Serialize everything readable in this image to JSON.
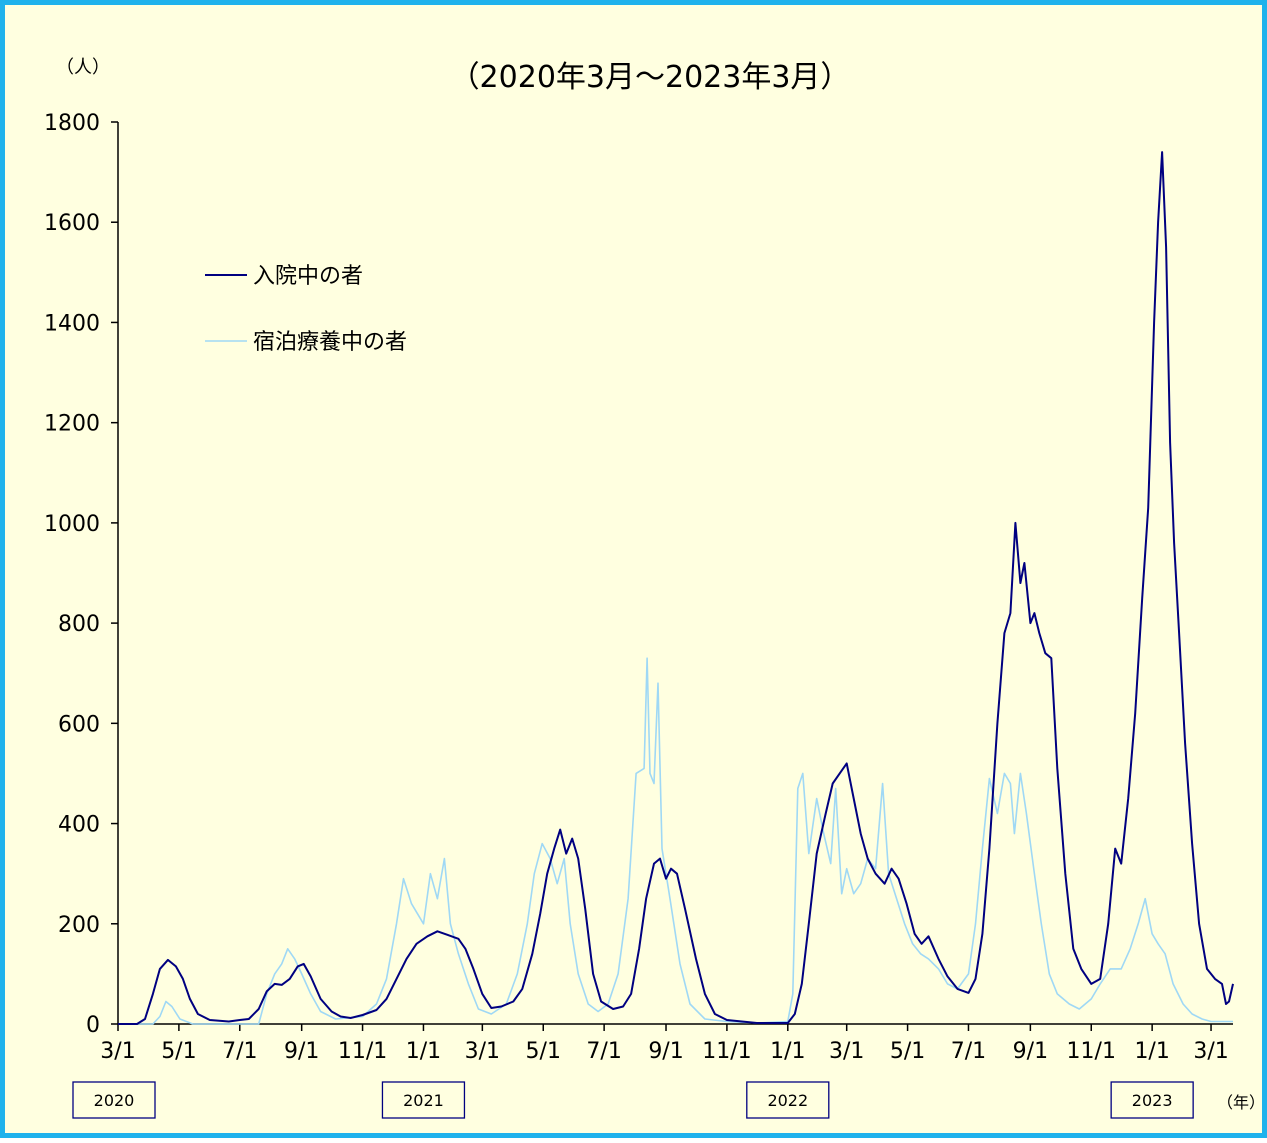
{
  "chart_data": {
    "type": "line",
    "title": "（2020年3月～2023年3月）",
    "y_unit": "（人）",
    "x_unit": "（年）",
    "ylim": [
      0,
      1800
    ],
    "yticks": [
      0,
      200,
      400,
      600,
      800,
      1000,
      1200,
      1400,
      1600,
      1800
    ],
    "xlim": [
      "2020-03-01",
      "2023-03-23"
    ],
    "xticks": [
      {
        "date": "2020-03-01",
        "label": "3/1"
      },
      {
        "date": "2020-05-01",
        "label": "5/1"
      },
      {
        "date": "2020-07-01",
        "label": "7/1"
      },
      {
        "date": "2020-09-01",
        "label": "9/1"
      },
      {
        "date": "2020-11-01",
        "label": "11/1"
      },
      {
        "date": "2021-01-01",
        "label": "1/1"
      },
      {
        "date": "2021-03-01",
        "label": "3/1"
      },
      {
        "date": "2021-05-01",
        "label": "5/1"
      },
      {
        "date": "2021-07-01",
        "label": "7/1"
      },
      {
        "date": "2021-09-01",
        "label": "9/1"
      },
      {
        "date": "2021-11-01",
        "label": "11/1"
      },
      {
        "date": "2022-01-01",
        "label": "1/1"
      },
      {
        "date": "2022-03-01",
        "label": "3/1"
      },
      {
        "date": "2022-05-01",
        "label": "5/1"
      },
      {
        "date": "2022-07-01",
        "label": "7/1"
      },
      {
        "date": "2022-09-01",
        "label": "9/1"
      },
      {
        "date": "2022-11-01",
        "label": "11/1"
      },
      {
        "date": "2023-01-01",
        "label": "1/1"
      },
      {
        "date": "2023-03-01",
        "label": "3/1"
      }
    ],
    "year_labels": [
      {
        "label": "2020",
        "date": "2020-03-01"
      },
      {
        "label": "2021",
        "date": "2021-01-01"
      },
      {
        "label": "2022",
        "date": "2022-01-01"
      },
      {
        "label": "2023",
        "date": "2023-01-01"
      }
    ],
    "grid": false,
    "legend_position": "upper-left",
    "series": [
      {
        "name": "入院中の者",
        "color": "#000080",
        "points": [
          [
            "2020-03-01",
            0
          ],
          [
            "2020-03-20",
            0
          ],
          [
            "2020-03-28",
            10
          ],
          [
            "2020-04-05",
            60
          ],
          [
            "2020-04-12",
            110
          ],
          [
            "2020-04-20",
            128
          ],
          [
            "2020-04-28",
            115
          ],
          [
            "2020-05-05",
            90
          ],
          [
            "2020-05-12",
            50
          ],
          [
            "2020-05-20",
            20
          ],
          [
            "2020-06-01",
            8
          ],
          [
            "2020-06-20",
            5
          ],
          [
            "2020-07-01",
            8
          ],
          [
            "2020-07-10",
            10
          ],
          [
            "2020-07-20",
            30
          ],
          [
            "2020-07-28",
            65
          ],
          [
            "2020-08-05",
            80
          ],
          [
            "2020-08-12",
            78
          ],
          [
            "2020-08-20",
            90
          ],
          [
            "2020-08-28",
            115
          ],
          [
            "2020-09-03",
            120
          ],
          [
            "2020-09-10",
            95
          ],
          [
            "2020-09-20",
            50
          ],
          [
            "2020-10-01",
            25
          ],
          [
            "2020-10-10",
            15
          ],
          [
            "2020-10-20",
            12
          ],
          [
            "2020-11-01",
            18
          ],
          [
            "2020-11-15",
            28
          ],
          [
            "2020-11-25",
            50
          ],
          [
            "2020-12-05",
            90
          ],
          [
            "2020-12-15",
            130
          ],
          [
            "2020-12-25",
            160
          ],
          [
            "2021-01-05",
            175
          ],
          [
            "2021-01-15",
            185
          ],
          [
            "2021-01-25",
            178
          ],
          [
            "2021-02-05",
            170
          ],
          [
            "2021-02-12",
            150
          ],
          [
            "2021-02-20",
            110
          ],
          [
            "2021-03-01",
            60
          ],
          [
            "2021-03-10",
            32
          ],
          [
            "2021-03-20",
            35
          ],
          [
            "2021-04-01",
            45
          ],
          [
            "2021-04-10",
            70
          ],
          [
            "2021-04-20",
            140
          ],
          [
            "2021-04-28",
            220
          ],
          [
            "2021-05-05",
            300
          ],
          [
            "2021-05-12",
            350
          ],
          [
            "2021-05-18",
            388
          ],
          [
            "2021-05-24",
            340
          ],
          [
            "2021-05-30",
            370
          ],
          [
            "2021-06-05",
            330
          ],
          [
            "2021-06-12",
            230
          ],
          [
            "2021-06-20",
            100
          ],
          [
            "2021-06-28",
            45
          ],
          [
            "2021-07-10",
            30
          ],
          [
            "2021-07-20",
            35
          ],
          [
            "2021-07-28",
            60
          ],
          [
            "2021-08-05",
            150
          ],
          [
            "2021-08-12",
            250
          ],
          [
            "2021-08-20",
            320
          ],
          [
            "2021-08-26",
            330
          ],
          [
            "2021-09-01",
            290
          ],
          [
            "2021-09-06",
            310
          ],
          [
            "2021-09-12",
            300
          ],
          [
            "2021-09-20",
            230
          ],
          [
            "2021-10-01",
            130
          ],
          [
            "2021-10-10",
            60
          ],
          [
            "2021-10-20",
            20
          ],
          [
            "2021-11-01",
            8
          ],
          [
            "2021-12-01",
            2
          ],
          [
            "2022-01-01",
            2
          ],
          [
            "2022-01-08",
            20
          ],
          [
            "2022-01-15",
            80
          ],
          [
            "2022-01-22",
            200
          ],
          [
            "2022-01-30",
            340
          ],
          [
            "2022-02-08",
            420
          ],
          [
            "2022-02-15",
            480
          ],
          [
            "2022-02-22",
            500
          ],
          [
            "2022-03-01",
            520
          ],
          [
            "2022-03-08",
            450
          ],
          [
            "2022-03-15",
            380
          ],
          [
            "2022-03-22",
            330
          ],
          [
            "2022-03-30",
            300
          ],
          [
            "2022-04-08",
            280
          ],
          [
            "2022-04-15",
            310
          ],
          [
            "2022-04-22",
            290
          ],
          [
            "2022-04-30",
            240
          ],
          [
            "2022-05-08",
            180
          ],
          [
            "2022-05-15",
            160
          ],
          [
            "2022-05-22",
            175
          ],
          [
            "2022-06-01",
            130
          ],
          [
            "2022-06-10",
            95
          ],
          [
            "2022-06-20",
            70
          ],
          [
            "2022-07-01",
            62
          ],
          [
            "2022-07-08",
            90
          ],
          [
            "2022-07-15",
            180
          ],
          [
            "2022-07-22",
            350
          ],
          [
            "2022-07-30",
            600
          ],
          [
            "2022-08-06",
            780
          ],
          [
            "2022-08-12",
            820
          ],
          [
            "2022-08-17",
            1000
          ],
          [
            "2022-08-22",
            880
          ],
          [
            "2022-08-26",
            920
          ],
          [
            "2022-09-01",
            800
          ],
          [
            "2022-09-05",
            820
          ],
          [
            "2022-09-10",
            780
          ],
          [
            "2022-09-16",
            740
          ],
          [
            "2022-09-22",
            730
          ],
          [
            "2022-09-28",
            510
          ],
          [
            "2022-10-06",
            300
          ],
          [
            "2022-10-14",
            150
          ],
          [
            "2022-10-22",
            110
          ],
          [
            "2022-11-01",
            80
          ],
          [
            "2022-11-10",
            90
          ],
          [
            "2022-11-18",
            200
          ],
          [
            "2022-11-25",
            350
          ],
          [
            "2022-12-01",
            320
          ],
          [
            "2022-12-08",
            450
          ],
          [
            "2022-12-15",
            620
          ],
          [
            "2022-12-22",
            850
          ],
          [
            "2022-12-28",
            1030
          ],
          [
            "2023-01-03",
            1400
          ],
          [
            "2023-01-07",
            1600
          ],
          [
            "2023-01-11",
            1740
          ],
          [
            "2023-01-15",
            1550
          ],
          [
            "2023-01-19",
            1160
          ],
          [
            "2023-01-23",
            960
          ],
          [
            "2023-01-28",
            780
          ],
          [
            "2023-02-03",
            560
          ],
          [
            "2023-02-10",
            360
          ],
          [
            "2023-02-17",
            200
          ],
          [
            "2023-02-25",
            110
          ],
          [
            "2023-03-05",
            90
          ],
          [
            "2023-03-12",
            80
          ],
          [
            "2023-03-16",
            40
          ],
          [
            "2023-03-19",
            45
          ],
          [
            "2023-03-23",
            80
          ]
        ]
      },
      {
        "name": "宿泊療養中の者",
        "color": "#9fd8f5",
        "points": [
          [
            "2020-03-01",
            0
          ],
          [
            "2020-04-05",
            0
          ],
          [
            "2020-04-12",
            15
          ],
          [
            "2020-04-18",
            45
          ],
          [
            "2020-04-24",
            35
          ],
          [
            "2020-05-02",
            10
          ],
          [
            "2020-05-15",
            0
          ],
          [
            "2020-07-20",
            0
          ],
          [
            "2020-07-28",
            60
          ],
          [
            "2020-08-05",
            100
          ],
          [
            "2020-08-12",
            120
          ],
          [
            "2020-08-18",
            150
          ],
          [
            "2020-08-25",
            130
          ],
          [
            "2020-09-01",
            100
          ],
          [
            "2020-09-10",
            60
          ],
          [
            "2020-09-20",
            25
          ],
          [
            "2020-10-05",
            10
          ],
          [
            "2020-11-01",
            15
          ],
          [
            "2020-11-15",
            40
          ],
          [
            "2020-11-25",
            90
          ],
          [
            "2020-12-05",
            200
          ],
          [
            "2020-12-12",
            290
          ],
          [
            "2020-12-20",
            240
          ],
          [
            "2021-01-01",
            200
          ],
          [
            "2021-01-08",
            300
          ],
          [
            "2021-01-15",
            250
          ],
          [
            "2021-01-22",
            330
          ],
          [
            "2021-01-28",
            200
          ],
          [
            "2021-02-05",
            140
          ],
          [
            "2021-02-15",
            80
          ],
          [
            "2021-02-25",
            30
          ],
          [
            "2021-03-10",
            20
          ],
          [
            "2021-03-25",
            40
          ],
          [
            "2021-04-05",
            100
          ],
          [
            "2021-04-15",
            200
          ],
          [
            "2021-04-22",
            300
          ],
          [
            "2021-04-30",
            360
          ],
          [
            "2021-05-08",
            330
          ],
          [
            "2021-05-15",
            280
          ],
          [
            "2021-05-22",
            330
          ],
          [
            "2021-05-28",
            200
          ],
          [
            "2021-06-05",
            100
          ],
          [
            "2021-06-15",
            40
          ],
          [
            "2021-06-25",
            25
          ],
          [
            "2021-07-05",
            40
          ],
          [
            "2021-07-15",
            100
          ],
          [
            "2021-07-25",
            250
          ],
          [
            "2021-08-02",
            500
          ],
          [
            "2021-08-10",
            510
          ],
          [
            "2021-08-13",
            730
          ],
          [
            "2021-08-16",
            500
          ],
          [
            "2021-08-20",
            480
          ],
          [
            "2021-08-24",
            680
          ],
          [
            "2021-08-28",
            350
          ],
          [
            "2021-09-05",
            250
          ],
          [
            "2021-09-15",
            120
          ],
          [
            "2021-09-25",
            40
          ],
          [
            "2021-10-10",
            10
          ],
          [
            "2021-11-01",
            5
          ],
          [
            "2021-12-01",
            2
          ],
          [
            "2022-01-01",
            5
          ],
          [
            "2022-01-06",
            60
          ],
          [
            "2022-01-11",
            470
          ],
          [
            "2022-01-16",
            500
          ],
          [
            "2022-01-22",
            340
          ],
          [
            "2022-01-30",
            450
          ],
          [
            "2022-02-06",
            380
          ],
          [
            "2022-02-13",
            320
          ],
          [
            "2022-02-18",
            470
          ],
          [
            "2022-02-24",
            260
          ],
          [
            "2022-03-01",
            310
          ],
          [
            "2022-03-08",
            260
          ],
          [
            "2022-03-15",
            280
          ],
          [
            "2022-03-22",
            330
          ],
          [
            "2022-03-30",
            310
          ],
          [
            "2022-04-06",
            480
          ],
          [
            "2022-04-12",
            300
          ],
          [
            "2022-04-20",
            250
          ],
          [
            "2022-04-28",
            200
          ],
          [
            "2022-05-06",
            160
          ],
          [
            "2022-05-14",
            140
          ],
          [
            "2022-05-22",
            130
          ],
          [
            "2022-06-01",
            110
          ],
          [
            "2022-06-10",
            80
          ],
          [
            "2022-06-20",
            70
          ],
          [
            "2022-07-01",
            100
          ],
          [
            "2022-07-08",
            200
          ],
          [
            "2022-07-15",
            350
          ],
          [
            "2022-07-22",
            490
          ],
          [
            "2022-07-30",
            420
          ],
          [
            "2022-08-06",
            500
          ],
          [
            "2022-08-12",
            480
          ],
          [
            "2022-08-16",
            380
          ],
          [
            "2022-08-22",
            500
          ],
          [
            "2022-08-28",
            420
          ],
          [
            "2022-09-05",
            300
          ],
          [
            "2022-09-12",
            200
          ],
          [
            "2022-09-20",
            100
          ],
          [
            "2022-09-28",
            60
          ],
          [
            "2022-10-10",
            40
          ],
          [
            "2022-10-20",
            30
          ],
          [
            "2022-11-01",
            50
          ],
          [
            "2022-11-10",
            80
          ],
          [
            "2022-11-20",
            110
          ],
          [
            "2022-12-01",
            110
          ],
          [
            "2022-12-10",
            150
          ],
          [
            "2022-12-18",
            200
          ],
          [
            "2022-12-25",
            250
          ],
          [
            "2023-01-01",
            180
          ],
          [
            "2023-01-07",
            160
          ],
          [
            "2023-01-14",
            140
          ],
          [
            "2023-01-22",
            80
          ],
          [
            "2023-02-01",
            40
          ],
          [
            "2023-02-10",
            20
          ],
          [
            "2023-02-20",
            10
          ],
          [
            "2023-03-01",
            5
          ],
          [
            "2023-03-23",
            5
          ]
        ]
      }
    ]
  }
}
